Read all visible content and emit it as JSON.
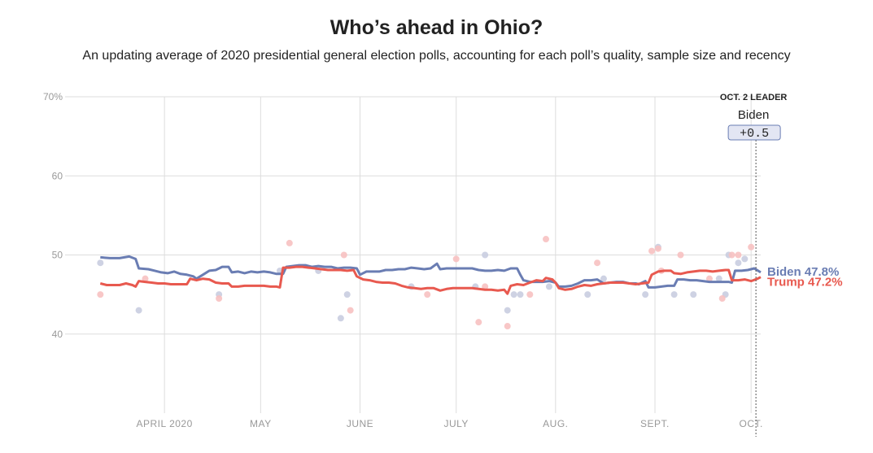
{
  "title": "Who’s ahead in Ohio?",
  "subtitle": "An updating average of 2020 presidential general election polls, accounting for each poll’s quality, sample size and recency",
  "colors": {
    "biden": "#6a7db3",
    "trump": "#e8594f",
    "biden_dot": "#c9cde0",
    "trump_dot": "#f7c1c1",
    "grid": "#dddddd",
    "axis_text": "#999999"
  },
  "chart_data": {
    "type": "line",
    "title": "Who’s ahead in Ohio?",
    "xlabel": "",
    "ylabel": "",
    "ylim": [
      30,
      70
    ],
    "xlim": [
      0,
      217
    ],
    "x_unit": "days since March 1, 2020",
    "y_ticks": [
      {
        "value": 70,
        "label": "70%"
      },
      {
        "value": 60,
        "label": "60"
      },
      {
        "value": 50,
        "label": "50"
      },
      {
        "value": 40,
        "label": "40"
      }
    ],
    "month_ticks": [
      {
        "x": 31,
        "label": "APRIL 2020"
      },
      {
        "x": 61,
        "label": "MAY"
      },
      {
        "x": 92,
        "label": "JUNE"
      },
      {
        "x": 122,
        "label": "JULY"
      },
      {
        "x": 153,
        "label": "AUG."
      },
      {
        "x": 184,
        "label": "SEPT."
      },
      {
        "x": 214,
        "label": "OCT."
      }
    ],
    "series": [
      {
        "name": "Biden",
        "label": "Biden 47.8%",
        "points": [
          [
            11,
            49.7
          ],
          [
            14,
            49.6
          ],
          [
            17,
            49.6
          ],
          [
            20,
            49.8
          ],
          [
            22,
            49.5
          ],
          [
            23,
            48.3
          ],
          [
            26,
            48.2
          ],
          [
            28,
            48.0
          ],
          [
            30,
            47.8
          ],
          [
            32,
            47.7
          ],
          [
            34,
            47.9
          ],
          [
            36,
            47.6
          ],
          [
            38,
            47.5
          ],
          [
            40,
            47.3
          ],
          [
            41,
            47.0
          ],
          [
            43,
            47.5
          ],
          [
            45,
            48.0
          ],
          [
            47,
            48.1
          ],
          [
            49,
            48.5
          ],
          [
            51,
            48.5
          ],
          [
            52,
            47.8
          ],
          [
            54,
            47.9
          ],
          [
            56,
            47.7
          ],
          [
            58,
            47.9
          ],
          [
            60,
            47.8
          ],
          [
            62,
            47.9
          ],
          [
            64,
            47.8
          ],
          [
            66,
            47.6
          ],
          [
            68,
            47.6
          ],
          [
            69,
            48.5
          ],
          [
            71,
            48.6
          ],
          [
            73,
            48.7
          ],
          [
            75,
            48.7
          ],
          [
            77,
            48.5
          ],
          [
            79,
            48.6
          ],
          [
            81,
            48.5
          ],
          [
            83,
            48.5
          ],
          [
            85,
            48.3
          ],
          [
            87,
            48.4
          ],
          [
            89,
            48.4
          ],
          [
            91,
            48.3
          ],
          [
            92,
            47.5
          ],
          [
            94,
            47.9
          ],
          [
            96,
            47.9
          ],
          [
            98,
            47.9
          ],
          [
            100,
            48.1
          ],
          [
            102,
            48.1
          ],
          [
            104,
            48.2
          ],
          [
            106,
            48.2
          ],
          [
            108,
            48.4
          ],
          [
            110,
            48.3
          ],
          [
            112,
            48.2
          ],
          [
            114,
            48.3
          ],
          [
            116,
            48.9
          ],
          [
            117,
            48.2
          ],
          [
            119,
            48.3
          ],
          [
            121,
            48.3
          ],
          [
            123,
            48.3
          ],
          [
            125,
            48.3
          ],
          [
            127,
            48.3
          ],
          [
            129,
            48.1
          ],
          [
            131,
            48.0
          ],
          [
            133,
            48.0
          ],
          [
            135,
            48.1
          ],
          [
            137,
            48.0
          ],
          [
            139,
            48.3
          ],
          [
            141,
            48.3
          ],
          [
            142,
            47.5
          ],
          [
            143,
            46.8
          ],
          [
            145,
            46.6
          ],
          [
            147,
            46.6
          ],
          [
            149,
            46.6
          ],
          [
            151,
            46.7
          ],
          [
            153,
            46.5
          ],
          [
            154,
            46.0
          ],
          [
            156,
            46.0
          ],
          [
            158,
            46.1
          ],
          [
            160,
            46.4
          ],
          [
            162,
            46.8
          ],
          [
            164,
            46.8
          ],
          [
            166,
            46.9
          ],
          [
            168,
            46.4
          ],
          [
            170,
            46.5
          ],
          [
            172,
            46.6
          ],
          [
            174,
            46.6
          ],
          [
            176,
            46.4
          ],
          [
            178,
            46.4
          ],
          [
            179,
            46.3
          ],
          [
            181,
            46.7
          ],
          [
            182,
            45.9
          ],
          [
            184,
            45.9
          ],
          [
            186,
            46.0
          ],
          [
            188,
            46.1
          ],
          [
            190,
            46.1
          ],
          [
            191,
            46.9
          ],
          [
            193,
            46.9
          ],
          [
            195,
            46.8
          ],
          [
            197,
            46.8
          ],
          [
            199,
            46.7
          ],
          [
            201,
            46.6
          ],
          [
            203,
            46.6
          ],
          [
            205,
            46.6
          ],
          [
            207,
            46.6
          ],
          [
            208,
            46.5
          ],
          [
            209,
            48.0
          ],
          [
            211,
            48.0
          ],
          [
            213,
            48.1
          ],
          [
            215,
            48.3
          ],
          [
            217,
            47.8
          ]
        ],
        "end_value": 47.8
      },
      {
        "name": "Trump",
        "label": "Trump 47.2%",
        "points": [
          [
            11,
            46.4
          ],
          [
            13,
            46.2
          ],
          [
            15,
            46.2
          ],
          [
            17,
            46.2
          ],
          [
            19,
            46.4
          ],
          [
            21,
            46.2
          ],
          [
            22,
            46.0
          ],
          [
            23,
            46.7
          ],
          [
            25,
            46.6
          ],
          [
            27,
            46.5
          ],
          [
            29,
            46.4
          ],
          [
            31,
            46.4
          ],
          [
            33,
            46.3
          ],
          [
            35,
            46.3
          ],
          [
            37,
            46.3
          ],
          [
            38,
            46.3
          ],
          [
            39,
            47.0
          ],
          [
            41,
            46.8
          ],
          [
            43,
            47.0
          ],
          [
            45,
            46.9
          ],
          [
            47,
            46.5
          ],
          [
            49,
            46.4
          ],
          [
            51,
            46.4
          ],
          [
            52,
            46.0
          ],
          [
            54,
            46.0
          ],
          [
            56,
            46.1
          ],
          [
            58,
            46.1
          ],
          [
            60,
            46.1
          ],
          [
            62,
            46.1
          ],
          [
            64,
            46.0
          ],
          [
            66,
            46.0
          ],
          [
            67,
            45.9
          ],
          [
            68,
            48.4
          ],
          [
            70,
            48.4
          ],
          [
            72,
            48.5
          ],
          [
            74,
            48.5
          ],
          [
            76,
            48.4
          ],
          [
            78,
            48.3
          ],
          [
            80,
            48.2
          ],
          [
            82,
            48.1
          ],
          [
            84,
            48.1
          ],
          [
            86,
            48.1
          ],
          [
            88,
            48.0
          ],
          [
            90,
            48.1
          ],
          [
            91,
            47.3
          ],
          [
            93,
            46.9
          ],
          [
            95,
            46.8
          ],
          [
            97,
            46.6
          ],
          [
            99,
            46.5
          ],
          [
            101,
            46.5
          ],
          [
            103,
            46.4
          ],
          [
            105,
            46.1
          ],
          [
            107,
            45.9
          ],
          [
            109,
            45.8
          ],
          [
            111,
            45.7
          ],
          [
            113,
            45.8
          ],
          [
            115,
            45.8
          ],
          [
            117,
            45.5
          ],
          [
            119,
            45.7
          ],
          [
            121,
            45.8
          ],
          [
            123,
            45.8
          ],
          [
            125,
            45.8
          ],
          [
            127,
            45.8
          ],
          [
            129,
            45.7
          ],
          [
            131,
            45.6
          ],
          [
            133,
            45.6
          ],
          [
            135,
            45.5
          ],
          [
            137,
            45.6
          ],
          [
            138,
            45.1
          ],
          [
            139,
            46.1
          ],
          [
            141,
            46.3
          ],
          [
            143,
            46.2
          ],
          [
            145,
            46.5
          ],
          [
            147,
            46.8
          ],
          [
            149,
            46.7
          ],
          [
            150,
            47.1
          ],
          [
            152,
            46.9
          ],
          [
            153,
            46.5
          ],
          [
            154,
            45.8
          ],
          [
            156,
            45.6
          ],
          [
            158,
            45.7
          ],
          [
            160,
            46.0
          ],
          [
            162,
            46.2
          ],
          [
            164,
            46.1
          ],
          [
            166,
            46.3
          ],
          [
            168,
            46.4
          ],
          [
            170,
            46.5
          ],
          [
            172,
            46.5
          ],
          [
            174,
            46.5
          ],
          [
            176,
            46.4
          ],
          [
            178,
            46.3
          ],
          [
            180,
            46.4
          ],
          [
            182,
            46.5
          ],
          [
            183,
            47.5
          ],
          [
            185,
            47.9
          ],
          [
            187,
            48.0
          ],
          [
            189,
            48.0
          ],
          [
            190,
            47.7
          ],
          [
            192,
            47.6
          ],
          [
            194,
            47.8
          ],
          [
            196,
            47.9
          ],
          [
            198,
            48.0
          ],
          [
            200,
            48.0
          ],
          [
            202,
            47.9
          ],
          [
            204,
            48.0
          ],
          [
            206,
            48.1
          ],
          [
            207,
            48.1
          ],
          [
            208,
            46.8
          ],
          [
            210,
            46.8
          ],
          [
            212,
            46.9
          ],
          [
            214,
            46.7
          ],
          [
            216,
            47.0
          ],
          [
            217,
            47.2
          ]
        ],
        "end_value": 47.2
      }
    ],
    "polls": {
      "biden": [
        [
          11,
          49.0
        ],
        [
          23,
          43.0
        ],
        [
          48,
          45.0
        ],
        [
          67,
          48.0
        ],
        [
          79,
          48.0
        ],
        [
          86,
          42.0
        ],
        [
          88,
          45.0
        ],
        [
          108,
          46.0
        ],
        [
          128,
          46.0
        ],
        [
          131,
          50.0
        ],
        [
          138,
          43.0
        ],
        [
          140,
          45.0
        ],
        [
          142,
          45.0
        ],
        [
          151,
          46.0
        ],
        [
          163,
          45.0
        ],
        [
          168,
          47.0
        ],
        [
          181,
          45.0
        ],
        [
          185,
          51.0
        ],
        [
          190,
          45.0
        ],
        [
          196,
          45.0
        ],
        [
          204,
          47.0
        ],
        [
          206,
          45.0
        ],
        [
          207,
          50.0
        ],
        [
          210,
          49.0
        ],
        [
          212,
          49.5
        ]
      ],
      "trump": [
        [
          11,
          45.0
        ],
        [
          25,
          47.0
        ],
        [
          48,
          44.5
        ],
        [
          70,
          51.5
        ],
        [
          87,
          50.0
        ],
        [
          89,
          43.0
        ],
        [
          113,
          45.0
        ],
        [
          122,
          49.5
        ],
        [
          129,
          41.5
        ],
        [
          131,
          46.0
        ],
        [
          138,
          41.0
        ],
        [
          145,
          45.0
        ],
        [
          150,
          52.0
        ],
        [
          166,
          49.0
        ],
        [
          183,
          50.5
        ],
        [
          185,
          50.8
        ],
        [
          186,
          48.0
        ],
        [
          192,
          50.0
        ],
        [
          201,
          47.0
        ],
        [
          205,
          44.5
        ],
        [
          208,
          50.0
        ],
        [
          210,
          50.0
        ],
        [
          214,
          51.0
        ]
      ]
    },
    "leader": {
      "header": "OCT. 2 LEADER",
      "name": "Biden",
      "margin": "+0.5",
      "x": 215
    }
  }
}
